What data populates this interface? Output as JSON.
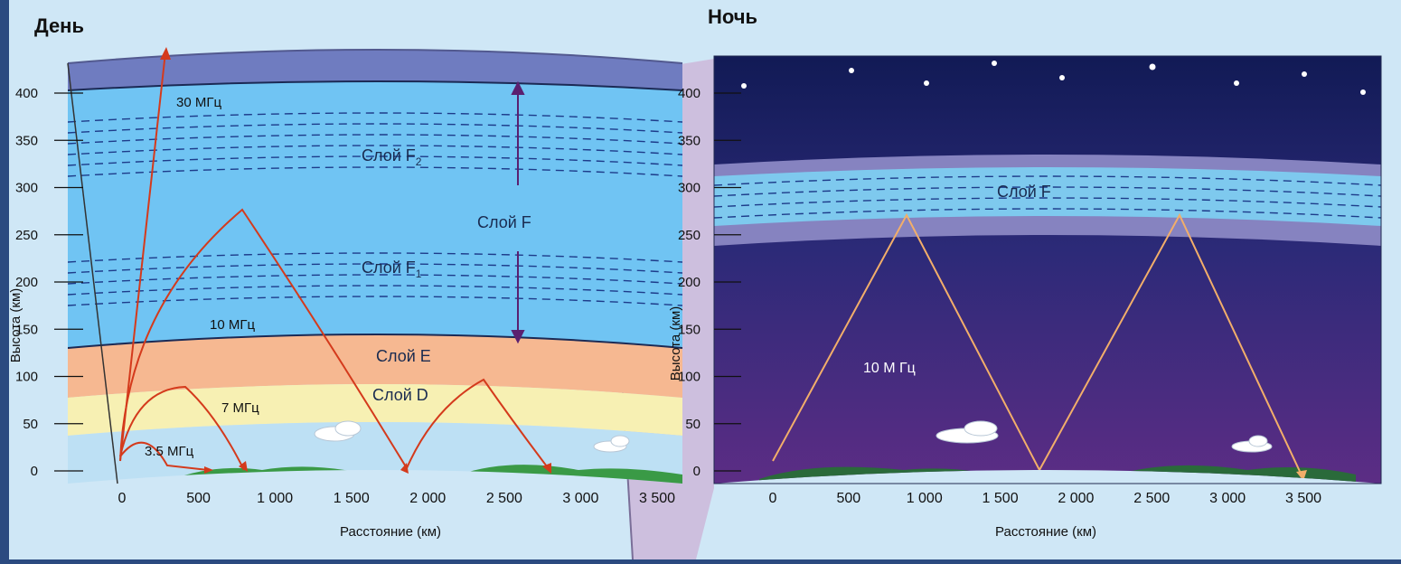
{
  "titles": {
    "day": "День",
    "night": "Ночь"
  },
  "y_axis": {
    "label": "Высота (км)",
    "ticks": [
      "0",
      "50",
      "100",
      "150",
      "200",
      "250",
      "300",
      "350",
      "400"
    ],
    "range": [
      0,
      400
    ]
  },
  "x_axis": {
    "label": "Расстояние (км)",
    "ticks": [
      "0",
      "500",
      "1 000",
      "1 500",
      "2 000",
      "2 500",
      "3 000",
      "3 500"
    ],
    "range": [
      0,
      3500
    ]
  },
  "day": {
    "layers": {
      "f": "Слой F",
      "f2_prefix": "Слой F",
      "f2_sub": "2",
      "f1_prefix": "Слой F",
      "f1_sub": "1",
      "e": "Слой E",
      "d": "Слой D"
    },
    "frequencies": {
      "f30": "30 МГц",
      "f10": "10 МГц",
      "f7": "7 МГц",
      "f35": "3.5 МГц"
    }
  },
  "night": {
    "layers": {
      "f": "Слой F"
    },
    "frequencies": {
      "f10": "10 М Гц"
    }
  },
  "colors": {
    "background": "#2b4a80",
    "panel": "#cfe7f6",
    "panel_purple": "#cdbfde",
    "day_sky_top": "#6f7cc0",
    "day_f": "#70c4f3",
    "day_e": "#f6b891",
    "day_d": "#f7f0b3",
    "day_low": "#bde0f4",
    "ground": "#3a9a46",
    "ray_day": "#d43a1c",
    "ray_night": "#f2ae6a",
    "night_top": "#121a55",
    "night_bottom": "#5b2d84",
    "night_f": "#7ec9ee",
    "night_f_band": "#8683c0",
    "arrow": "#5a2070"
  }
}
